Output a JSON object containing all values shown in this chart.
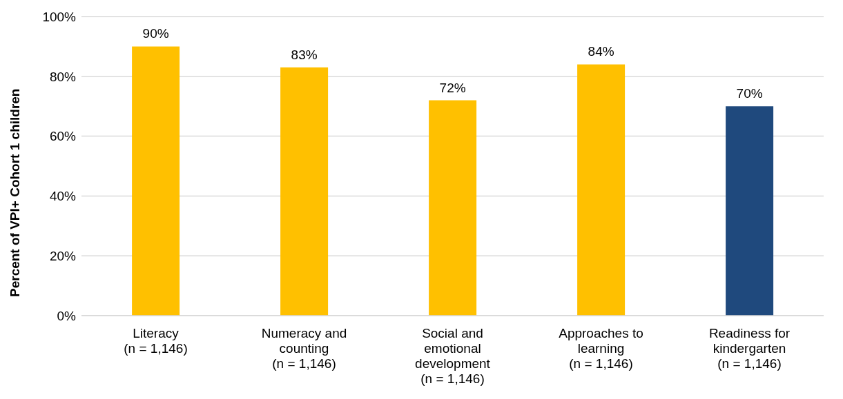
{
  "chart_data": {
    "type": "bar",
    "ylabel": "Percent of VPI+ Cohort 1 children",
    "categories": [
      "Literacy\n(n = 1,146)",
      "Numeracy and\ncounting\n(n = 1,146)",
      "Social and\nemotional\ndevelopment\n(n = 1,146)",
      "Approaches to\nlearning\n(n = 1,146)",
      "Readiness for\nkindergarten\n(n = 1,146)"
    ],
    "values": [
      90,
      83,
      72,
      84,
      70
    ],
    "colors": [
      "#ffc000",
      "#ffc000",
      "#ffc000",
      "#ffc000",
      "#1f497d"
    ],
    "value_labels": [
      "90%",
      "83%",
      "72%",
      "84%",
      "70%"
    ],
    "ylim": [
      0,
      100
    ],
    "yticks": [
      {
        "value": 0,
        "label": "0%"
      },
      {
        "value": 20,
        "label": "20%"
      },
      {
        "value": 40,
        "label": "40%"
      },
      {
        "value": 60,
        "label": "60%"
      },
      {
        "value": 80,
        "label": "80%"
      },
      {
        "value": 100,
        "label": "100%"
      }
    ],
    "grid": "y"
  }
}
